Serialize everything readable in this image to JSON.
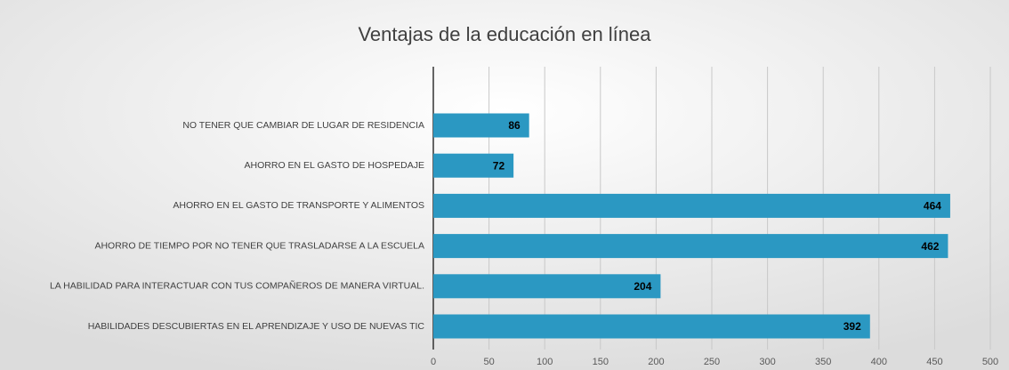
{
  "chart_data": {
    "type": "bar",
    "orientation": "horizontal",
    "title": "Ventajas de la educación en línea",
    "categories": [
      "NO TENER QUE CAMBIAR DE LUGAR DE RESIDENCIA",
      "AHORRO EN EL GASTO DE HOSPEDAJE",
      "AHORRO EN EL GASTO DE TRANSPORTE Y ALIMENTOS",
      "AHORRO DE TIEMPO POR NO TENER QUE TRASLADARSE A LA ESCUELA",
      "LA HABILIDAD PARA INTERACTUAR CON TUS COMPAÑEROS DE MANERA VIRTUAL.",
      "HABILIDADES DESCUBIERTAS EN EL APRENDIZAJE Y USO DE NUEVAS TIC"
    ],
    "values": [
      86,
      72,
      464,
      462,
      204,
      392
    ],
    "color": "#2b98c2",
    "xlim": [
      0,
      500
    ],
    "xticks": [
      0,
      50,
      100,
      150,
      200,
      250,
      300,
      350,
      400,
      450,
      500
    ],
    "grid": true
  }
}
